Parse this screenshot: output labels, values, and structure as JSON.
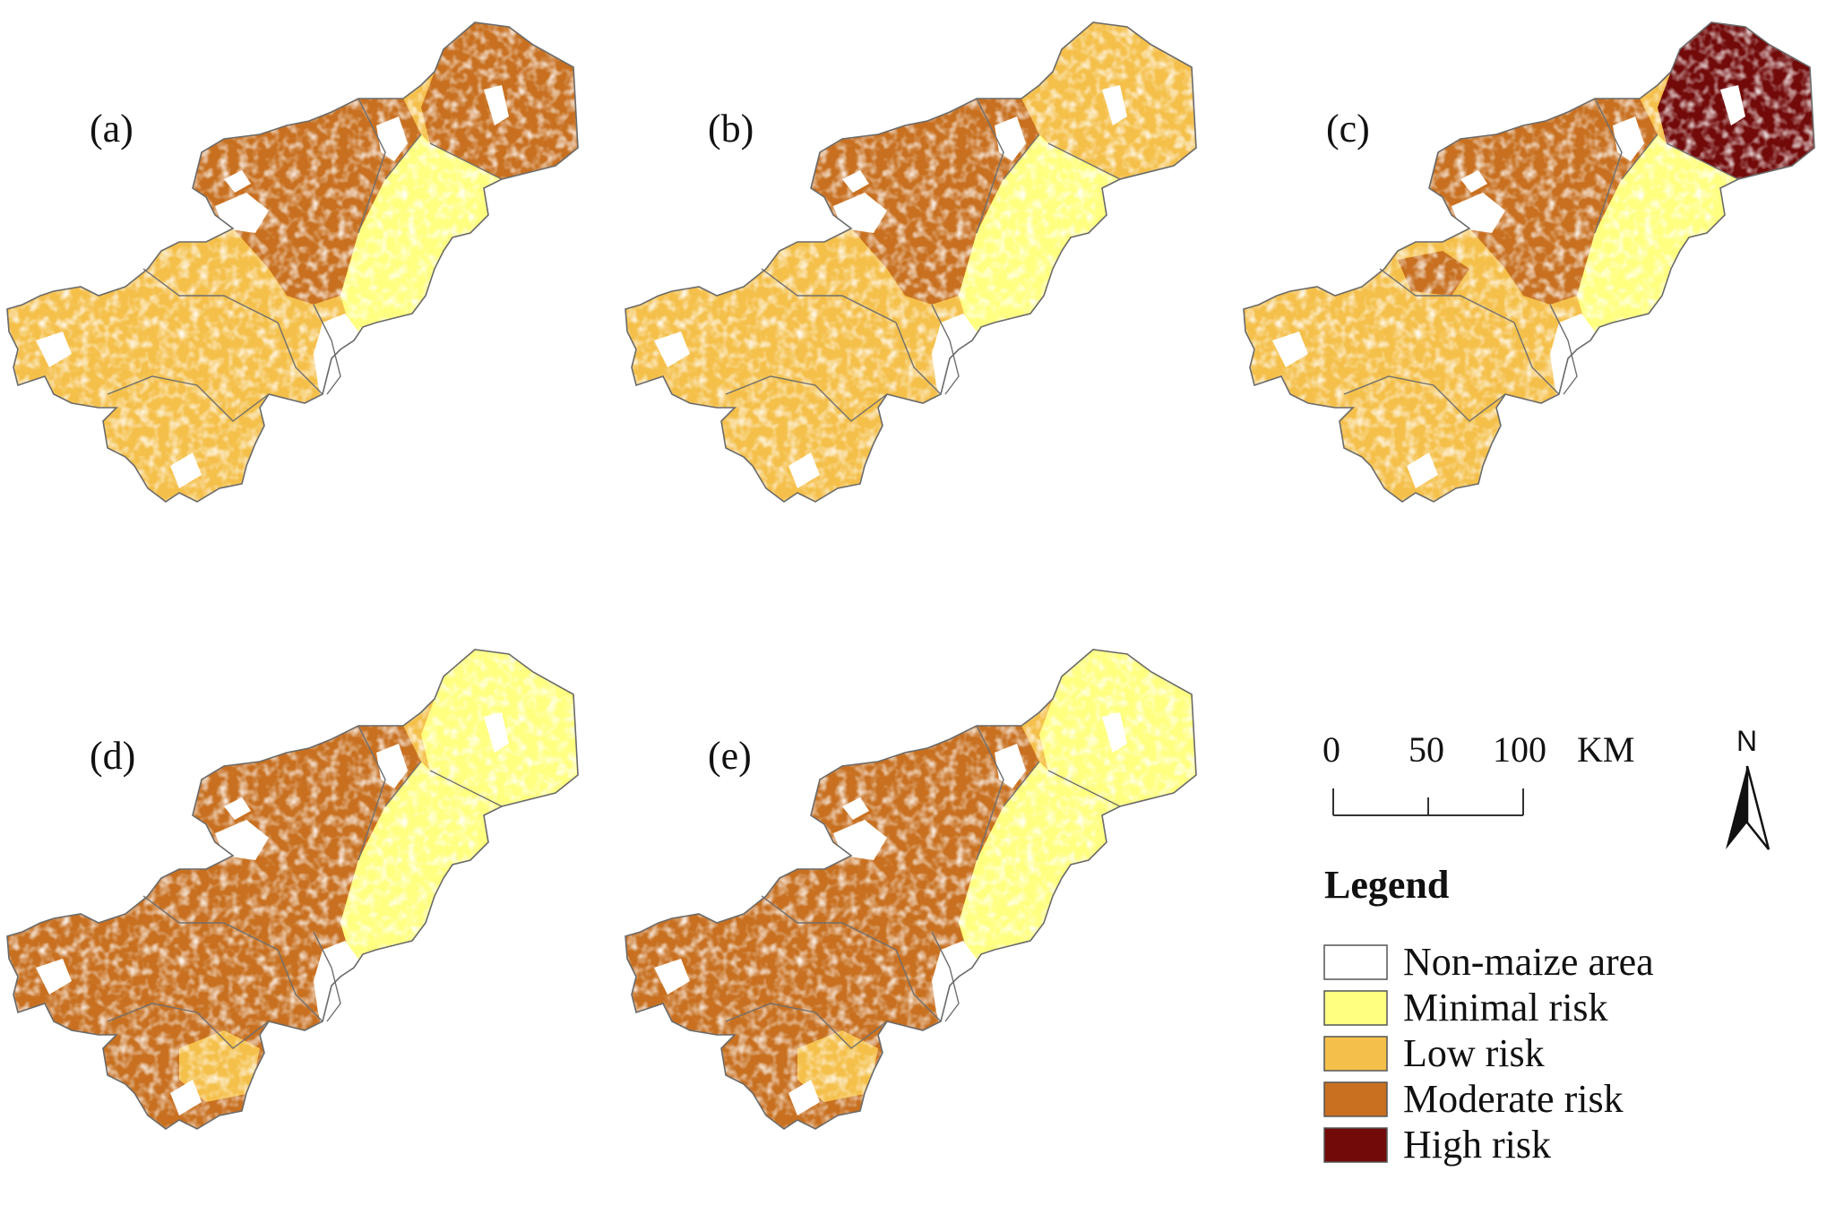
{
  "panels": [
    {
      "id": "a",
      "label": "(a)",
      "north_risk": "moderate",
      "northwest_risk": "moderate",
      "south_risk": "low",
      "east_risk": "minimal",
      "high_risk_spots": false
    },
    {
      "id": "b",
      "label": "(b)",
      "north_risk": "low",
      "northwest_risk": "moderate",
      "south_risk": "low",
      "east_risk": "minimal",
      "high_risk_spots": false
    },
    {
      "id": "c",
      "label": "(c)",
      "north_risk": "high",
      "northwest_risk": "moderate",
      "south_risk": "low",
      "east_risk": "minimal",
      "high_risk_spots": true
    },
    {
      "id": "d",
      "label": "(d)",
      "north_risk": "minimal",
      "northwest_risk": "moderate",
      "south_risk": "moderate",
      "east_risk": "minimal",
      "high_risk_spots": false
    },
    {
      "id": "e",
      "label": "(e)",
      "north_risk": "minimal",
      "northwest_risk": "moderate",
      "south_risk": "moderate",
      "east_risk": "minimal",
      "high_risk_spots": false
    }
  ],
  "scale_bar": {
    "ticks": [
      "0",
      "50",
      "100"
    ],
    "unit": "KM"
  },
  "north_arrow": {
    "label": "N"
  },
  "legend": {
    "title": "Legend",
    "items": [
      {
        "key": "none",
        "label": "Non-maize area",
        "color": "#ffffff"
      },
      {
        "key": "minimal",
        "label": "Minimal risk",
        "color": "#ffff80"
      },
      {
        "key": "low",
        "label": "Low risk",
        "color": "#f5c04a"
      },
      {
        "key": "moderate",
        "label": "Moderate risk",
        "color": "#c87020"
      },
      {
        "key": "high",
        "label": "High risk",
        "color": "#720a0a"
      }
    ]
  }
}
